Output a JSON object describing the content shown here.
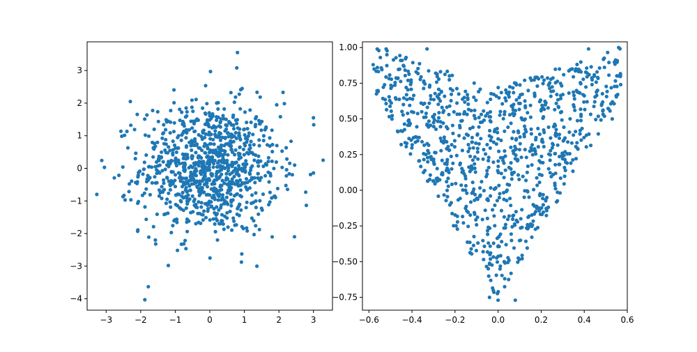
{
  "colors": {
    "marker": "#1f77b4",
    "axes": "#000000",
    "background": "#ffffff"
  },
  "chart_data": [
    {
      "type": "scatter",
      "title": "",
      "xlabel": "",
      "ylabel": "",
      "grid": false,
      "xlim": [
        -3.55,
        3.55
      ],
      "ylim": [
        -4.35,
        3.88
      ],
      "xticks": [
        -3,
        -2,
        -1,
        0,
        1,
        2,
        3
      ],
      "yticks": [
        -4,
        -3,
        -2,
        -1,
        0,
        1,
        2,
        3
      ],
      "tick_labels_x": [
        "−3",
        "−2",
        "−1",
        "0",
        "1",
        "2",
        "3"
      ],
      "tick_labels_y": [
        "−4",
        "−3",
        "−2",
        "−1",
        "0",
        "1",
        "2",
        "3"
      ],
      "point_count_estimate": 1000,
      "distribution": "bivariate standard normal, mean (0, 0), sd 1 on both axes",
      "notable_points": [
        {
          "x": 0.8,
          "y": 3.55
        },
        {
          "x": 0.78,
          "y": 3.08
        },
        {
          "x": 0.02,
          "y": 2.97
        },
        {
          "x": 3.28,
          "y": 0.25
        },
        {
          "x": 3.0,
          "y": 1.55
        },
        {
          "x": -3.27,
          "y": -0.8
        },
        {
          "x": -3.05,
          "y": 0.03
        },
        {
          "x": -1.88,
          "y": -4.03
        },
        {
          "x": -1.78,
          "y": -3.63
        },
        {
          "x": -2.3,
          "y": 2.05
        },
        {
          "x": 2.12,
          "y": 2.33
        },
        {
          "x": 2.45,
          "y": -2.1
        },
        {
          "x": -1.2,
          "y": -2.98
        }
      ]
    },
    {
      "type": "scatter",
      "title": "",
      "xlabel": "",
      "ylabel": "",
      "grid": false,
      "xlim": [
        -0.63,
        0.6
      ],
      "ylim": [
        -0.84,
        1.04
      ],
      "xticks": [
        -0.6,
        -0.4,
        -0.2,
        0.0,
        0.2,
        0.4,
        0.6
      ],
      "yticks": [
        -0.75,
        -0.5,
        -0.25,
        0.0,
        0.25,
        0.5,
        0.75,
        1.0
      ],
      "tick_labels_x": [
        "−0.6",
        "−0.4",
        "−0.2",
        "0.0",
        "0.2",
        "0.4",
        "0.6"
      ],
      "tick_labels_y": [
        "−0.75",
        "−0.50",
        "−0.25",
        "0.00",
        "0.25",
        "0.50",
        "0.75",
        "1.00"
      ],
      "point_count_estimate": 1000,
      "distribution": "uniform points inside a V-shaped region: x from about -0.58 to 0.57, y from about -0.77 to 1.0, with lower edge descending from (±0.55, 0.6) to (0.0, -0.77) and a shallow dip at the top near (0.0, 0.72)",
      "notable_points": [
        {
          "x": -0.58,
          "y": 0.88
        },
        {
          "x": -0.52,
          "y": 0.99
        },
        {
          "x": -0.33,
          "y": 0.99
        },
        {
          "x": 0.42,
          "y": 0.99
        },
        {
          "x": 0.56,
          "y": 1.0
        },
        {
          "x": 0.0,
          "y": -0.77
        },
        {
          "x": -0.04,
          "y": -0.75
        },
        {
          "x": 0.08,
          "y": -0.77
        },
        {
          "x": -0.45,
          "y": 0.32
        },
        {
          "x": 0.53,
          "y": 0.5
        }
      ]
    }
  ]
}
